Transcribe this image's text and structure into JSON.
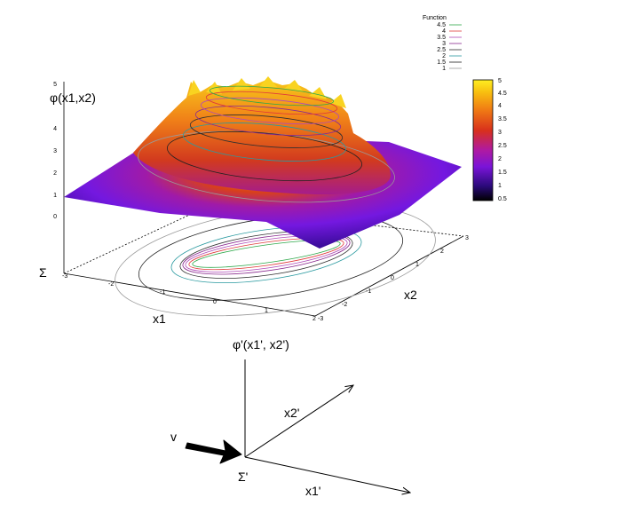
{
  "top_plot": {
    "z_label": "φ(x1,x2)",
    "x_label": "x1",
    "y_label": "x2",
    "sigma_label": "Σ",
    "z_ticks": [
      "5",
      "4",
      "3",
      "2",
      "1",
      "0"
    ],
    "x_ticks": [
      "-3",
      "-2",
      "-1",
      "0",
      "1",
      "2"
    ],
    "y_ticks": [
      "-3",
      "-2",
      "-1",
      "0",
      "1",
      "2",
      "3"
    ],
    "colorbar": {
      "ticks": [
        "5",
        "4.5",
        "4",
        "3.5",
        "3",
        "2.5",
        "2",
        "1.5",
        "1",
        "0.5"
      ],
      "range": [
        0.5,
        5
      ]
    },
    "legend": {
      "title": "Function",
      "items": [
        {
          "label": "4.5",
          "color": "#2ea84a"
        },
        {
          "label": "4",
          "color": "#e03a3a"
        },
        {
          "label": "3.5",
          "color": "#b04ab8"
        },
        {
          "label": "3",
          "color": "#8a2b8f"
        },
        {
          "label": "2.5",
          "color": "#303030"
        },
        {
          "label": "2",
          "color": "#2a9aa0"
        },
        {
          "label": "1.5",
          "color": "#222222"
        },
        {
          "label": "1",
          "color": "#9a9a9a"
        }
      ]
    }
  },
  "bottom_diagram": {
    "z_label": "φ'(x1', x2')",
    "x_label": "x1'",
    "y_label": "x2'",
    "sigma_label": "Σ'",
    "velocity_label": "v"
  }
}
